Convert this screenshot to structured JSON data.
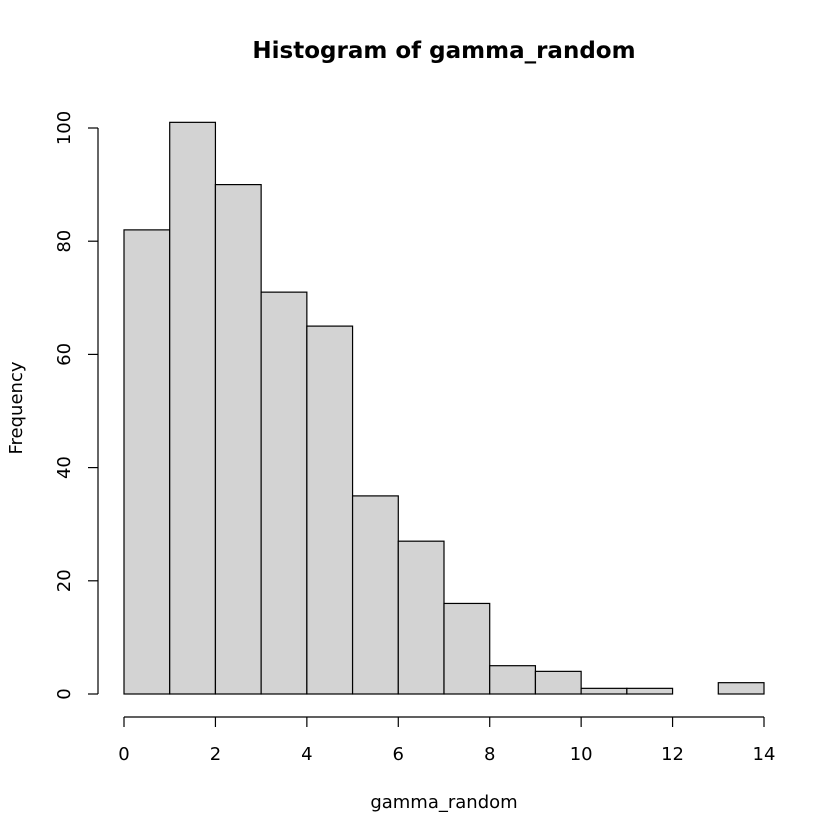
{
  "chart_data": {
    "type": "bar",
    "title": "Histogram of gamma_random",
    "xlabel": "gamma_random",
    "ylabel": "Frequency",
    "bins": [
      [
        0,
        1
      ],
      [
        1,
        2
      ],
      [
        2,
        3
      ],
      [
        3,
        4
      ],
      [
        4,
        5
      ],
      [
        5,
        6
      ],
      [
        6,
        7
      ],
      [
        7,
        8
      ],
      [
        8,
        9
      ],
      [
        9,
        10
      ],
      [
        10,
        11
      ],
      [
        11,
        12
      ],
      [
        12,
        13
      ],
      [
        13,
        14
      ]
    ],
    "values": [
      82,
      101,
      90,
      71,
      65,
      35,
      27,
      16,
      5,
      4,
      1,
      1,
      0,
      2
    ],
    "xlim": [
      0,
      14
    ],
    "ylim": [
      0,
      100
    ],
    "xticks": [
      0,
      2,
      4,
      6,
      8,
      10,
      12,
      14
    ],
    "yticks": [
      0,
      20,
      40,
      60,
      80,
      100
    ],
    "bar_color": "#d3d3d3",
    "grid": false
  }
}
